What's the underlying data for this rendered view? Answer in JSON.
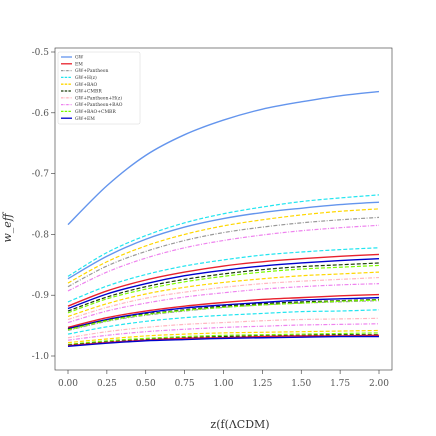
{
  "chart_data": {
    "type": "line",
    "xlabel": "z(f(ΛCDM)",
    "ylabel": "w_eff",
    "xlim": [
      0.0,
      2.0
    ],
    "ylim": [
      -1.0,
      -0.5
    ],
    "x_ticks": [
      "0.00",
      "0.25",
      "0.50",
      "0.75",
      "1.00",
      "1.25",
      "1.50",
      "1.75",
      "2.00"
    ],
    "y_ticks": [
      "-0.5",
      "-0.6",
      "-0.7",
      "-0.8",
      "-0.9",
      "-1.0"
    ],
    "legend_position": "top-left",
    "legend": [
      {
        "label": "GW",
        "color": "#6495ed",
        "dash": "solid"
      },
      {
        "label": "EM",
        "color": "#e8212d",
        "dash": "solid"
      },
      {
        "label": "GW+Pantheon",
        "color": "#999999",
        "dash": "dashdot"
      },
      {
        "label": "GW+H(z)",
        "color": "#22e5f0",
        "dash": "dashed"
      },
      {
        "label": "GW+BAO",
        "color": "#ffd700",
        "dash": "dashed"
      },
      {
        "label": "GW+CMBR",
        "color": "#1c3d0a",
        "dash": "dashed"
      },
      {
        "label": "GW+Pantheon+H(z)",
        "color": "#ffb6c1",
        "dash": "dashdot"
      },
      {
        "label": "GW+Pantheon+BAO",
        "color": "#ee82ee",
        "dash": "dashdot"
      },
      {
        "label": "GW+BAO+CMBR",
        "color": "#7cfc00",
        "dash": "dashed"
      },
      {
        "label": "GW+EM",
        "color": "#0000cd",
        "dash": "solid"
      }
    ],
    "series": [
      {
        "name": "GW",
        "color": "#6495ed",
        "dash": "solid",
        "x": [
          0.0,
          0.25,
          0.5,
          0.75,
          1.0,
          1.25,
          1.5,
          1.75,
          2.0
        ],
        "y": [
          -0.784,
          -0.72,
          -0.67,
          -0.636,
          -0.612,
          -0.594,
          -0.582,
          -0.572,
          -0.565
        ]
      },
      {
        "name": "GW+H(z)",
        "color": "#22e5f0",
        "dash": "dashed",
        "x": [
          0.0,
          0.25,
          0.5,
          0.75,
          1.0,
          1.25,
          1.5,
          1.75,
          2.0
        ],
        "y": [
          -0.869,
          -0.83,
          -0.802,
          -0.781,
          -0.766,
          -0.755,
          -0.746,
          -0.74,
          -0.735
        ]
      },
      {
        "name": "GW",
        "color": "#6495ed",
        "dash": "solid",
        "x": [
          0.0,
          0.25,
          0.5,
          0.75,
          1.0,
          1.25,
          1.5,
          1.75,
          2.0
        ],
        "y": [
          -0.873,
          -0.836,
          -0.808,
          -0.788,
          -0.774,
          -0.764,
          -0.757,
          -0.751,
          -0.747
        ]
      },
      {
        "name": "GW+BAO",
        "color": "#ffd700",
        "dash": "dashed",
        "x": [
          0.0,
          0.25,
          0.5,
          0.75,
          1.0,
          1.25,
          1.5,
          1.75,
          2.0
        ],
        "y": [
          -0.88,
          -0.845,
          -0.819,
          -0.8,
          -0.786,
          -0.776,
          -0.768,
          -0.762,
          -0.758
        ]
      },
      {
        "name": "GW+Pantheon",
        "color": "#999999",
        "dash": "dashdot",
        "x": [
          0.0,
          0.25,
          0.5,
          0.75,
          1.0,
          1.25,
          1.5,
          1.75,
          2.0
        ],
        "y": [
          -0.886,
          -0.852,
          -0.828,
          -0.81,
          -0.797,
          -0.788,
          -0.781,
          -0.776,
          -0.772
        ]
      },
      {
        "name": "GW+Pantheon+BAO",
        "color": "#ee82ee",
        "dash": "dashdot",
        "x": [
          0.0,
          0.25,
          0.5,
          0.75,
          1.0,
          1.25,
          1.5,
          1.75,
          2.0
        ],
        "y": [
          -0.893,
          -0.862,
          -0.839,
          -0.822,
          -0.81,
          -0.801,
          -0.794,
          -0.789,
          -0.785
        ]
      },
      {
        "name": "GW+H(z)",
        "color": "#22e5f0",
        "dash": "dashed",
        "x": [
          0.0,
          0.25,
          0.5,
          0.75,
          1.0,
          1.25,
          1.5,
          1.75,
          2.0
        ],
        "y": [
          -0.911,
          -0.885,
          -0.866,
          -0.852,
          -0.842,
          -0.834,
          -0.829,
          -0.825,
          -0.822
        ]
      },
      {
        "name": "EM",
        "color": "#e8212d",
        "dash": "solid",
        "x": [
          0.0,
          0.25,
          0.5,
          0.75,
          1.0,
          1.25,
          1.5,
          1.75,
          2.0
        ],
        "y": [
          -0.918,
          -0.893,
          -0.875,
          -0.862,
          -0.852,
          -0.845,
          -0.84,
          -0.836,
          -0.833
        ]
      },
      {
        "name": "GW+EM",
        "color": "#0000cd",
        "dash": "solid",
        "x": [
          0.0,
          0.25,
          0.5,
          0.75,
          1.0,
          1.25,
          1.5,
          1.75,
          2.0
        ],
        "y": [
          -0.922,
          -0.898,
          -0.881,
          -0.868,
          -0.859,
          -0.852,
          -0.847,
          -0.843,
          -0.84
        ]
      },
      {
        "name": "GW+CMBR",
        "color": "#1c3d0a",
        "dash": "dashed",
        "x": [
          0.0,
          0.25,
          0.5,
          0.75,
          1.0,
          1.25,
          1.5,
          1.75,
          2.0
        ],
        "y": [
          -0.926,
          -0.903,
          -0.886,
          -0.874,
          -0.865,
          -0.858,
          -0.853,
          -0.85,
          -0.847
        ]
      },
      {
        "name": "GW+BAO+CMBR",
        "color": "#7cfc00",
        "dash": "dashed",
        "x": [
          0.0,
          0.25,
          0.5,
          0.75,
          1.0,
          1.25,
          1.5,
          1.75,
          2.0
        ],
        "y": [
          -0.929,
          -0.906,
          -0.89,
          -0.878,
          -0.869,
          -0.862,
          -0.857,
          -0.854,
          -0.851
        ]
      },
      {
        "name": "GW+BAO",
        "color": "#ffd700",
        "dash": "dashed",
        "x": [
          0.0,
          0.25,
          0.5,
          0.75,
          1.0,
          1.25,
          1.5,
          1.75,
          2.0
        ],
        "y": [
          -0.935,
          -0.914,
          -0.898,
          -0.887,
          -0.879,
          -0.873,
          -0.868,
          -0.865,
          -0.862
        ]
      },
      {
        "name": "GW+Pantheon+H(z)",
        "color": "#ffb6c1",
        "dash": "dashdot",
        "x": [
          0.0,
          0.25,
          0.5,
          0.75,
          1.0,
          1.25,
          1.5,
          1.75,
          2.0
        ],
        "y": [
          -0.94,
          -0.92,
          -0.905,
          -0.895,
          -0.887,
          -0.881,
          -0.877,
          -0.874,
          -0.871
        ]
      },
      {
        "name": "GW+Pantheon+BAO",
        "color": "#ee82ee",
        "dash": "dashdot",
        "x": [
          0.0,
          0.25,
          0.5,
          0.75,
          1.0,
          1.25,
          1.5,
          1.75,
          2.0
        ],
        "y": [
          -0.945,
          -0.926,
          -0.913,
          -0.903,
          -0.896,
          -0.89,
          -0.886,
          -0.883,
          -0.881
        ]
      },
      {
        "name": "EM",
        "color": "#e8212d",
        "dash": "solid",
        "x": [
          0.0,
          0.25,
          0.5,
          0.75,
          1.0,
          1.25,
          1.5,
          1.75,
          2.0
        ],
        "y": [
          -0.953,
          -0.937,
          -0.926,
          -0.918,
          -0.912,
          -0.907,
          -0.904,
          -0.901,
          -0.899
        ]
      },
      {
        "name": "GW+EM",
        "color": "#0000cd",
        "dash": "solid",
        "x": [
          0.0,
          0.25,
          0.5,
          0.75,
          1.0,
          1.25,
          1.5,
          1.75,
          2.0
        ],
        "y": [
          -0.955,
          -0.94,
          -0.929,
          -0.921,
          -0.916,
          -0.912,
          -0.908,
          -0.906,
          -0.904
        ]
      },
      {
        "name": "GW+Pantheon",
        "color": "#999999",
        "dash": "dashdot",
        "x": [
          0.0,
          0.25,
          0.5,
          0.75,
          1.0,
          1.25,
          1.5,
          1.75,
          2.0
        ],
        "y": [
          -0.958,
          -0.943,
          -0.933,
          -0.926,
          -0.92,
          -0.916,
          -0.913,
          -0.911,
          -0.909
        ]
      },
      {
        "name": "GW+CMBR",
        "color": "#1c3d0a",
        "dash": "dashed",
        "x": [
          0.0,
          0.25,
          0.5,
          0.75,
          1.0,
          1.25,
          1.5,
          1.75,
          2.0
        ],
        "y": [
          -0.956,
          -0.941,
          -0.931,
          -0.924,
          -0.918,
          -0.914,
          -0.911,
          -0.909,
          -0.907
        ]
      },
      {
        "name": "GW+BAO+CMBR",
        "color": "#7cfc00",
        "dash": "dashed",
        "x": [
          0.0,
          0.25,
          0.5,
          0.75,
          1.0,
          1.25,
          1.5,
          1.75,
          2.0
        ],
        "y": [
          -0.957,
          -0.942,
          -0.932,
          -0.925,
          -0.92,
          -0.916,
          -0.913,
          -0.91,
          -0.908
        ]
      },
      {
        "name": "GW+H(z)",
        "color": "#22e5f0",
        "dash": "dashed",
        "x": [
          0.0,
          0.25,
          0.5,
          0.75,
          1.0,
          1.25,
          1.5,
          1.75,
          2.0
        ],
        "y": [
          -0.964,
          -0.952,
          -0.943,
          -0.937,
          -0.933,
          -0.93,
          -0.927,
          -0.926,
          -0.924
        ]
      },
      {
        "name": "GW+Pantheon+H(z)",
        "color": "#ffb6c1",
        "dash": "dashdot",
        "x": [
          0.0,
          0.25,
          0.5,
          0.75,
          1.0,
          1.25,
          1.5,
          1.75,
          2.0
        ],
        "y": [
          -0.97,
          -0.96,
          -0.953,
          -0.948,
          -0.945,
          -0.942,
          -0.94,
          -0.939,
          -0.938
        ]
      },
      {
        "name": "GW+Pantheon+BAO",
        "color": "#ee82ee",
        "dash": "dashdot",
        "x": [
          0.0,
          0.25,
          0.5,
          0.75,
          1.0,
          1.25,
          1.5,
          1.75,
          2.0
        ],
        "y": [
          -0.974,
          -0.966,
          -0.96,
          -0.956,
          -0.953,
          -0.951,
          -0.949,
          -0.948,
          -0.947
        ]
      },
      {
        "name": "GW+BAO",
        "color": "#ffd700",
        "dash": "dashed",
        "x": [
          0.0,
          0.25,
          0.5,
          0.75,
          1.0,
          1.25,
          1.5,
          1.75,
          2.0
        ],
        "y": [
          -0.978,
          -0.972,
          -0.967,
          -0.964,
          -0.962,
          -0.961,
          -0.96,
          -0.959,
          -0.958
        ]
      },
      {
        "name": "GW+BAO+CMBR",
        "color": "#7cfc00",
        "dash": "dashed",
        "x": [
          0.0,
          0.25,
          0.5,
          0.75,
          1.0,
          1.25,
          1.5,
          1.75,
          2.0
        ],
        "y": [
          -0.981,
          -0.975,
          -0.971,
          -0.968,
          -0.966,
          -0.965,
          -0.964,
          -0.963,
          -0.962
        ]
      },
      {
        "name": "GW+CMBR",
        "color": "#1c3d0a",
        "dash": "dashed",
        "x": [
          0.0,
          0.25,
          0.5,
          0.75,
          1.0,
          1.25,
          1.5,
          1.75,
          2.0
        ],
        "y": [
          -0.982,
          -0.977,
          -0.973,
          -0.97,
          -0.968,
          -0.967,
          -0.966,
          -0.965,
          -0.965
        ]
      },
      {
        "name": "EM",
        "color": "#e8212d",
        "dash": "solid",
        "x": [
          0.0,
          0.25,
          0.5,
          0.75,
          1.0,
          1.25,
          1.5,
          1.75,
          2.0
        ],
        "y": [
          -0.983,
          -0.978,
          -0.974,
          -0.971,
          -0.97,
          -0.968,
          -0.967,
          -0.967,
          -0.966
        ]
      },
      {
        "name": "GW+EM",
        "color": "#0000cd",
        "dash": "solid",
        "x": [
          0.0,
          0.25,
          0.5,
          0.75,
          1.0,
          1.25,
          1.5,
          1.75,
          2.0
        ],
        "y": [
          -0.984,
          -0.979,
          -0.975,
          -0.973,
          -0.971,
          -0.97,
          -0.969,
          -0.968,
          -0.968
        ]
      }
    ]
  }
}
